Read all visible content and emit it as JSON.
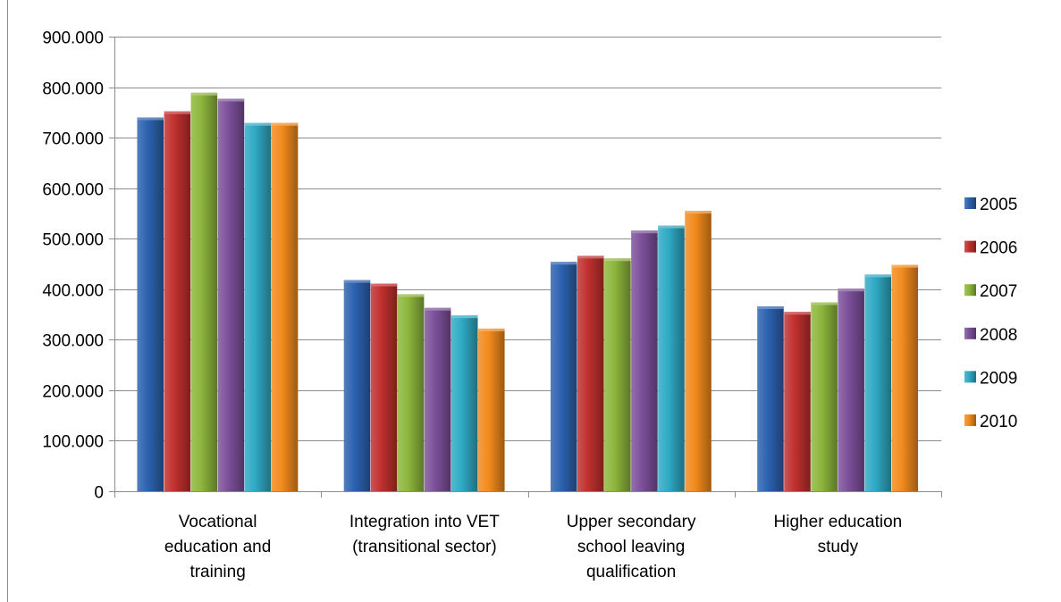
{
  "chart_data": {
    "type": "bar",
    "title": "",
    "xlabel": "",
    "ylabel": "",
    "categories": [
      [
        "Vocational",
        "education and",
        "training"
      ],
      [
        "Integration into VET",
        "(transitional sector)"
      ],
      [
        "Upper secondary",
        "school leaving",
        "qualification"
      ],
      [
        "Higher education",
        "study"
      ]
    ],
    "ylim": [
      0,
      900000
    ],
    "yticks": [
      0,
      100000,
      200000,
      300000,
      400000,
      500000,
      600000,
      700000,
      800000,
      900000
    ],
    "ytick_labels": [
      "0",
      "100.000",
      "200.000",
      "300.000",
      "400.000",
      "500.000",
      "600.000",
      "700.000",
      "800.000",
      "900.000"
    ],
    "grid": "horizontal",
    "legend_position": "right",
    "series": [
      {
        "name": "2005",
        "color": "#2c62b0",
        "values": [
          740000,
          418000,
          454000,
          366000
        ]
      },
      {
        "name": "2006",
        "color": "#c0302e",
        "values": [
          752000,
          411000,
          466000,
          355000
        ]
      },
      {
        "name": "2007",
        "color": "#8db63c",
        "values": [
          789000,
          390000,
          461000,
          374000
        ]
      },
      {
        "name": "2008",
        "color": "#7c509a",
        "values": [
          777000,
          363000,
          516000,
          401000
        ]
      },
      {
        "name": "2009",
        "color": "#2fa9c4",
        "values": [
          729000,
          348000,
          526000,
          429000
        ]
      },
      {
        "name": "2010",
        "color": "#f28a1c",
        "values": [
          729000,
          322000,
          555000,
          448000
        ]
      }
    ]
  }
}
